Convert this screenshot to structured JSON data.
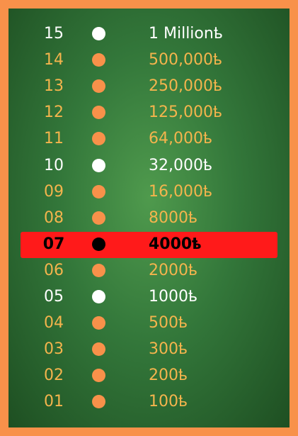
{
  "colors": {
    "frame": "#f8914a",
    "board": "#33773a",
    "safe_text": "#ffffff",
    "normal_text": "#f4b44d",
    "normal_dot": "#f8914a",
    "current_highlight": "#ff1a1a"
  },
  "current_level": "07",
  "levels": [
    {
      "number": "15",
      "amount": "1 Millionҍ",
      "kind": "safe"
    },
    {
      "number": "14",
      "amount": "500,000ҍ",
      "kind": "normal"
    },
    {
      "number": "13",
      "amount": "250,000ҍ",
      "kind": "normal"
    },
    {
      "number": "12",
      "amount": "125,000ҍ",
      "kind": "normal"
    },
    {
      "number": "11",
      "amount": "64,000ҍ",
      "kind": "normal"
    },
    {
      "number": "10",
      "amount": "32,000ҍ",
      "kind": "safe"
    },
    {
      "number": "09",
      "amount": "16,000ҍ",
      "kind": "normal"
    },
    {
      "number": "08",
      "amount": "8000ҍ",
      "kind": "normal"
    },
    {
      "number": "07",
      "amount": "4000ҍ",
      "kind": "current"
    },
    {
      "number": "06",
      "amount": "2000ҍ",
      "kind": "normal"
    },
    {
      "number": "05",
      "amount": "1000ҍ",
      "kind": "safe"
    },
    {
      "number": "04",
      "amount": "500ҍ",
      "kind": "normal"
    },
    {
      "number": "03",
      "amount": "300ҍ",
      "kind": "normal"
    },
    {
      "number": "02",
      "amount": "200ҍ",
      "kind": "normal"
    },
    {
      "number": "01",
      "amount": "100ҍ",
      "kind": "normal"
    }
  ]
}
